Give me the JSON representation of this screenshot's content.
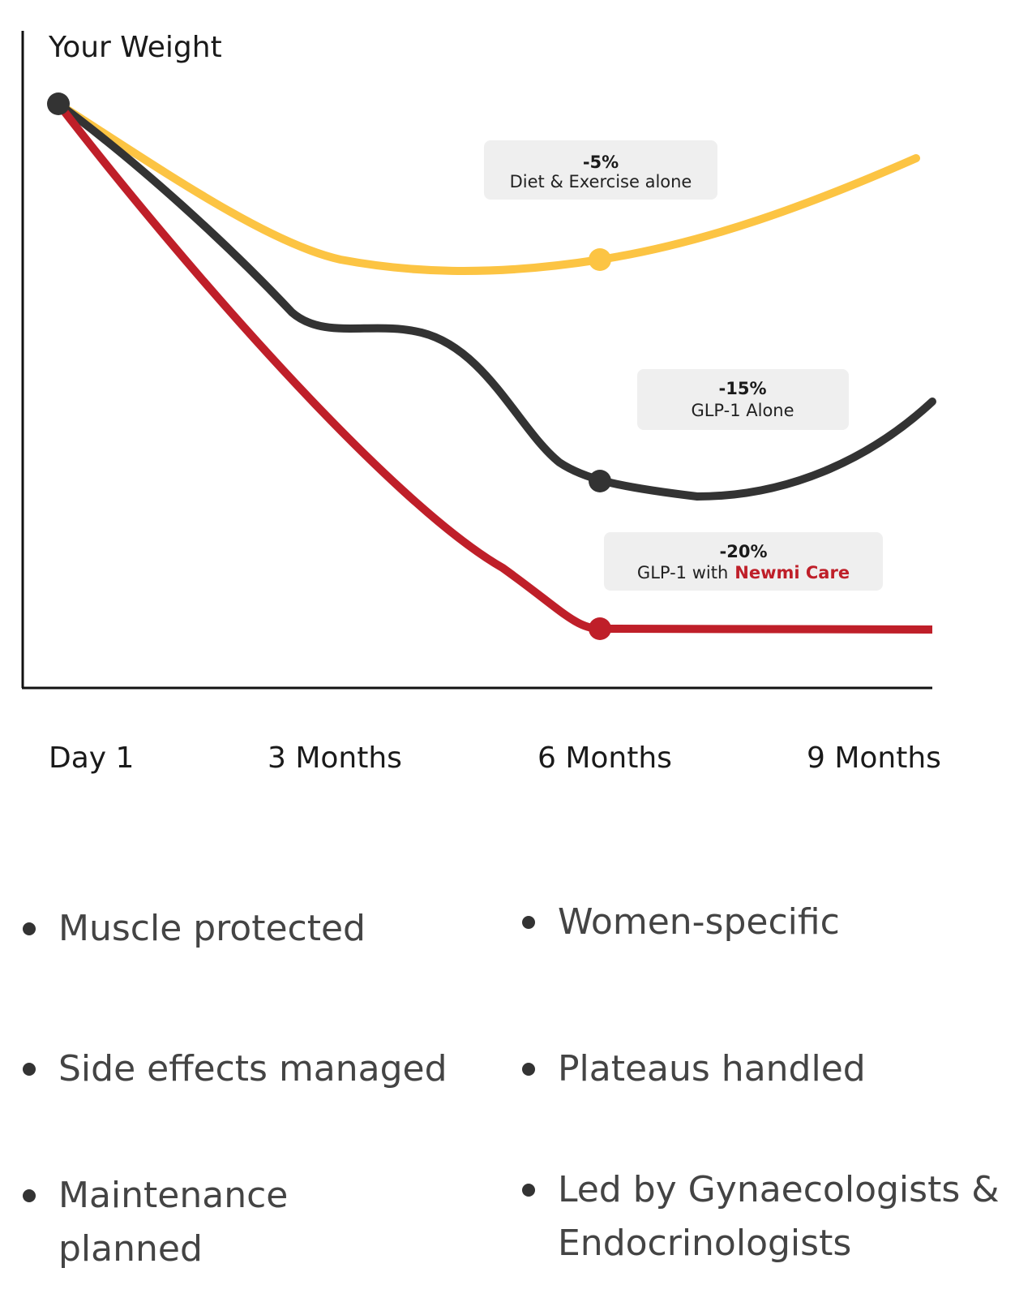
{
  "chart": {
    "title": "Your Weight",
    "x_labels": [
      "Day 1",
      "3 Months",
      "6 Months",
      "9 Months"
    ],
    "callouts": [
      {
        "change": "-5%",
        "label": "Diet & Exercise alone"
      },
      {
        "change": "-15%",
        "label": "GLP-1 Alone"
      },
      {
        "change": "-20%",
        "label": "GLP-1 with",
        "brand": "Newmi Care"
      }
    ]
  },
  "benefits": {
    "left": [
      [
        "Muscle protected"
      ],
      [
        "Side effects managed"
      ],
      [
        "Maintenance",
        "planned"
      ]
    ],
    "right": [
      [
        "Women-specific"
      ],
      [
        "Plateaus handled"
      ],
      [
        "Led by Gynaecologists &",
        "Endocrinologists"
      ]
    ]
  }
}
